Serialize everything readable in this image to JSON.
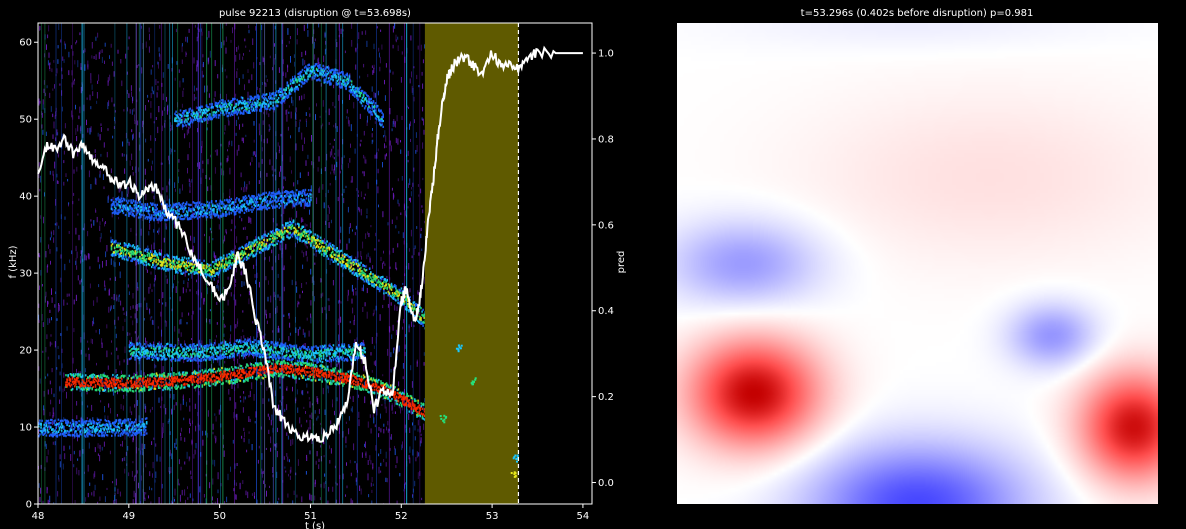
{
  "chart_data": [
    {
      "type": "heatmap",
      "title": "pulse 92213 (disruption @ t=53.698s)",
      "xlabel": "t (s)",
      "ylabel": "f (kHz)",
      "y2label": "pred",
      "xlim": [
        48.0,
        54.1
      ],
      "ylim": [
        0,
        62.5
      ],
      "y2lim": [
        -0.05,
        1.07
      ],
      "x_ticks": [
        48,
        49,
        50,
        51,
        52,
        53,
        54
      ],
      "y_ticks": [
        0,
        10,
        20,
        30,
        40,
        50,
        60
      ],
      "y2_ticks": [
        0.0,
        0.2,
        0.4,
        0.6,
        0.8,
        1.0
      ],
      "y2_tick_labels": [
        "0.0",
        "0.2",
        "0.4",
        "0.6",
        "0.8",
        "1.0"
      ],
      "highlight_window": {
        "x_start": 52.26,
        "x_end": 53.29,
        "color": "#5f5a00"
      },
      "marker_line": {
        "x": 53.29,
        "style": "dashed",
        "color": "#ffffff"
      },
      "background_color": "#000000",
      "colormap": [
        "#2a0a6e",
        "#7b1fd6",
        "#1f5fff",
        "#1cc7ff",
        "#26e07a",
        "#e8e81a",
        "#ff2a00"
      ],
      "mode_bands": [
        {
          "points": [
            [
              48.3,
              16.0
            ],
            [
              49.0,
              15.8
            ],
            [
              49.6,
              16.2
            ],
            [
              50.2,
              17.0
            ],
            [
              50.6,
              17.8
            ],
            [
              51.0,
              17.3
            ],
            [
              51.5,
              16.2
            ],
            [
              51.9,
              14.5
            ],
            [
              52.3,
              11.6
            ]
          ],
          "intensity": 1.0
        },
        {
          "points": [
            [
              48.8,
              33.5
            ],
            [
              49.4,
              31.5
            ],
            [
              49.9,
              30.5
            ],
            [
              50.3,
              33.0
            ],
            [
              50.8,
              36.0
            ],
            [
              51.2,
              33.0
            ],
            [
              51.6,
              30.0
            ],
            [
              52.0,
              27.0
            ],
            [
              52.3,
              23.5
            ]
          ],
          "intensity": 0.7
        },
        {
          "points": [
            [
              49.0,
              20.0
            ],
            [
              49.8,
              19.8
            ],
            [
              50.3,
              20.5
            ],
            [
              51.0,
              19.5
            ],
            [
              51.6,
              20.0
            ]
          ],
          "intensity": 0.5
        },
        {
          "points": [
            [
              48.8,
              39.0
            ],
            [
              49.3,
              38.0
            ],
            [
              50.0,
              38.5
            ],
            [
              50.5,
              39.5
            ],
            [
              51.0,
              40.0
            ]
          ],
          "intensity": 0.35
        },
        {
          "points": [
            [
              49.5,
              50.0
            ],
            [
              50.0,
              51.5
            ],
            [
              50.6,
              52.5
            ],
            [
              51.0,
              56.5
            ],
            [
              51.4,
              55.0
            ],
            [
              51.8,
              50.0
            ]
          ],
          "intensity": 0.45
        },
        {
          "points": [
            [
              48.0,
              10.0
            ],
            [
              48.6,
              10.0
            ],
            [
              49.2,
              10.2
            ]
          ],
          "intensity": 0.4
        }
      ],
      "series": [
        {
          "name": "pred",
          "axis": "right",
          "color": "#ffffff",
          "x": [
            48.0,
            48.1,
            48.2,
            48.3,
            48.4,
            48.5,
            48.6,
            48.7,
            48.8,
            48.9,
            49.0,
            49.1,
            49.2,
            49.3,
            49.4,
            49.5,
            49.6,
            49.7,
            49.8,
            49.9,
            50.0,
            50.1,
            50.2,
            50.3,
            50.4,
            50.5,
            50.6,
            50.7,
            50.8,
            50.9,
            51.0,
            51.1,
            51.2,
            51.3,
            51.4,
            51.5,
            51.6,
            51.7,
            51.8,
            51.9,
            52.0,
            52.05,
            52.1,
            52.15,
            52.2,
            52.25,
            52.3,
            52.35,
            52.4,
            52.45,
            52.5,
            52.55,
            52.6,
            52.7,
            52.8,
            52.9,
            53.0,
            53.1,
            53.2,
            53.3,
            53.4,
            53.5,
            53.7,
            54.0
          ],
          "values": [
            0.72,
            0.79,
            0.77,
            0.8,
            0.76,
            0.79,
            0.75,
            0.74,
            0.71,
            0.69,
            0.7,
            0.67,
            0.68,
            0.69,
            0.64,
            0.61,
            0.58,
            0.53,
            0.5,
            0.46,
            0.42,
            0.45,
            0.53,
            0.48,
            0.38,
            0.3,
            0.17,
            0.15,
            0.12,
            0.11,
            0.11,
            0.1,
            0.12,
            0.14,
            0.18,
            0.33,
            0.28,
            0.17,
            0.22,
            0.2,
            0.42,
            0.45,
            0.41,
            0.38,
            0.42,
            0.5,
            0.62,
            0.7,
            0.8,
            0.88,
            0.94,
            0.96,
            0.98,
            0.99,
            0.97,
            0.95,
            1.0,
            0.97,
            0.98,
            0.96,
            0.99,
            1.0,
            1.0,
            1.0
          ]
        }
      ]
    },
    {
      "type": "heatmap",
      "title": "t=53.296s (0.402s before disruption) p=0.981",
      "colormap": [
        "#0000ff",
        "#ffffff",
        "#ff0000"
      ],
      "value_range": [
        -1,
        1
      ],
      "blobs": [
        {
          "cx": 0.16,
          "cy": 0.77,
          "sx": 0.12,
          "sy": 0.1,
          "value": 1.0
        },
        {
          "cx": 0.95,
          "cy": 0.84,
          "sx": 0.1,
          "sy": 0.1,
          "value": 0.95
        },
        {
          "cx": 0.14,
          "cy": 0.5,
          "sx": 0.14,
          "sy": 0.08,
          "value": -0.4
        },
        {
          "cx": 0.78,
          "cy": 0.65,
          "sx": 0.08,
          "sy": 0.06,
          "value": -0.42
        },
        {
          "cx": 0.5,
          "cy": 1.0,
          "sx": 0.2,
          "sy": 0.11,
          "value": -0.72
        },
        {
          "cx": 0.65,
          "cy": 0.32,
          "sx": 0.35,
          "sy": 0.16,
          "value": 0.12
        },
        {
          "cx": 0.5,
          "cy": 0.0,
          "sx": 0.35,
          "sy": 0.05,
          "value": -0.07
        }
      ]
    }
  ]
}
